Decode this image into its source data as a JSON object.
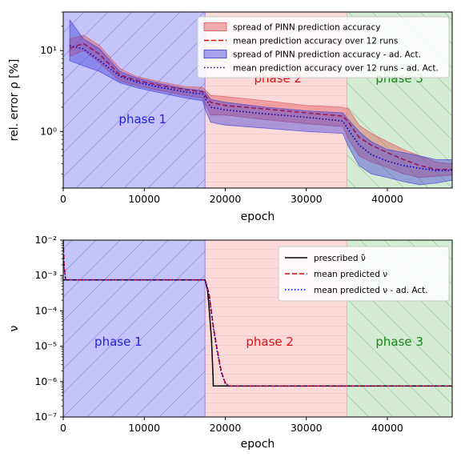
{
  "chart_data": [
    {
      "type": "line",
      "xlabel": "epoch",
      "ylabel": "rel. error ρ [%]",
      "xlim": [
        0,
        48000
      ],
      "ylim": [
        0.2,
        30
      ],
      "yscale": "log",
      "xticks": [
        0,
        10000,
        20000,
        30000,
        40000
      ],
      "xtick_labels": [
        "0",
        "10000",
        "20000",
        "30000",
        "40000"
      ],
      "yticks": [
        1,
        10
      ],
      "ytick_labels": [
        "10⁰",
        "10¹"
      ],
      "legend_position": "top-right",
      "phases": [
        {
          "label": "phase 1",
          "start": 0,
          "end": 17500,
          "color": "#4d4df0",
          "text_color": "#2222dd",
          "label_x": 9800,
          "label_y": 1.4
        },
        {
          "label": "phase 2",
          "start": 17500,
          "end": 35000,
          "color": "#f59090",
          "text_color": "#e01010",
          "label_x": 26500,
          "label_y": 4.5
        },
        {
          "label": "phase 3",
          "start": 35000,
          "end": 48000,
          "color": "#7dc47d",
          "text_color": "#118811",
          "label_x": 41500,
          "label_y": 4.5
        }
      ],
      "series": [
        {
          "name": "spread of PINN prediction accuracy",
          "kind": "band",
          "color": "#e05050",
          "x": [
            800,
            2500,
            4500,
            7000,
            9000,
            12000,
            15000,
            17200,
            17500,
            18200,
            20000,
            25000,
            30000,
            34500,
            35200,
            36500,
            38000,
            40000,
            42000,
            44000,
            46000,
            48000
          ],
          "lower": [
            8.5,
            10.0,
            7.0,
            4.2,
            3.7,
            3.2,
            2.8,
            2.6,
            2.2,
            1.6,
            1.6,
            1.4,
            1.25,
            1.15,
            0.8,
            0.5,
            0.42,
            0.36,
            0.3,
            0.27,
            0.28,
            0.29
          ],
          "upper": [
            14.0,
            15.5,
            11.5,
            6.0,
            4.8,
            4.1,
            3.6,
            3.5,
            3.3,
            2.8,
            2.7,
            2.4,
            2.1,
            2.0,
            1.9,
            1.2,
            0.95,
            0.75,
            0.6,
            0.5,
            0.42,
            0.4
          ]
        },
        {
          "name": "mean prediction accuracy over 12 runs",
          "kind": "line",
          "style": "dashed",
          "color": "#e00000",
          "x": [
            800,
            2500,
            4500,
            7000,
            9000,
            12000,
            15000,
            17200,
            17500,
            18200,
            20000,
            25000,
            30000,
            34500,
            35200,
            36500,
            38000,
            40000,
            42000,
            44000,
            46000,
            48000
          ],
          "y": [
            10.7,
            12.2,
            9.0,
            5.0,
            4.3,
            3.7,
            3.3,
            3.1,
            2.8,
            2.3,
            2.1,
            1.9,
            1.7,
            1.55,
            1.3,
            0.85,
            0.68,
            0.55,
            0.45,
            0.38,
            0.34,
            0.34
          ]
        },
        {
          "name": "spread of PINN prediction accuracy - ad. Act.",
          "kind": "band",
          "color": "#3a3ad8",
          "x": [
            800,
            2500,
            4500,
            7000,
            9000,
            12000,
            15000,
            17200,
            17500,
            18200,
            20000,
            25000,
            30000,
            34500,
            35200,
            36500,
            38000,
            40000,
            42000,
            44000,
            46000,
            48000
          ],
          "lower": [
            7.5,
            6.5,
            5.5,
            4.0,
            3.5,
            3.0,
            2.6,
            2.4,
            1.9,
            1.3,
            1.2,
            1.1,
            1.0,
            0.95,
            0.65,
            0.38,
            0.3,
            0.27,
            0.24,
            0.22,
            0.23,
            0.25
          ],
          "upper": [
            24.0,
            14.0,
            10.5,
            5.5,
            4.6,
            3.9,
            3.4,
            3.2,
            3.1,
            2.5,
            2.3,
            2.0,
            1.8,
            1.7,
            1.4,
            1.0,
            0.75,
            0.6,
            0.55,
            0.5,
            0.45,
            0.45
          ]
        },
        {
          "name": "mean prediction accuracy over 12 runs - ad. Act.",
          "kind": "line",
          "style": "dotted",
          "color": "#0000cc",
          "x": [
            800,
            2500,
            4500,
            7000,
            9000,
            12000,
            15000,
            17200,
            17500,
            18200,
            20000,
            25000,
            30000,
            34500,
            35200,
            36500,
            38000,
            40000,
            42000,
            44000,
            46000,
            48000
          ],
          "y": [
            11.5,
            10.5,
            7.5,
            4.8,
            4.1,
            3.5,
            3.1,
            2.9,
            2.6,
            2.0,
            1.85,
            1.65,
            1.5,
            1.35,
            1.05,
            0.68,
            0.52,
            0.43,
            0.38,
            0.35,
            0.33,
            0.33
          ]
        }
      ]
    },
    {
      "type": "line",
      "xlabel": "epoch",
      "ylabel": "ν",
      "xlim": [
        0,
        48000
      ],
      "ylim": [
        1e-07,
        0.01
      ],
      "yscale": "log",
      "xticks": [
        0,
        10000,
        20000,
        30000,
        40000
      ],
      "xtick_labels": [
        "0",
        "10000",
        "20000",
        "30000",
        "40000"
      ],
      "yticks": [
        1e-07,
        1e-06,
        1e-05,
        0.0001,
        0.001,
        0.01
      ],
      "ytick_labels": [
        "10⁻⁷",
        "10⁻⁶",
        "10⁻⁵",
        "10⁻⁴",
        "10⁻³",
        "10⁻²"
      ],
      "legend_position": "top-right",
      "phases": [
        {
          "label": "phase 1",
          "start": 0,
          "end": 17500,
          "color": "#4d4df0",
          "text_color": "#2222dd",
          "label_x": 6800,
          "label_y": 1.3e-05
        },
        {
          "label": "phase 2",
          "start": 17500,
          "end": 35000,
          "color": "#f59090",
          "text_color": "#e01010",
          "label_x": 25500,
          "label_y": 1.3e-05
        },
        {
          "label": "phase 3",
          "start": 35000,
          "end": 48000,
          "color": "#7dc47d",
          "text_color": "#118811",
          "label_x": 41500,
          "label_y": 1.3e-05
        }
      ],
      "series": [
        {
          "name": "prescribed ν̃",
          "kind": "line",
          "style": "solid",
          "color": "#000000",
          "x": [
            0,
            17500,
            17800,
            18000,
            18300,
            18500,
            18520,
            48000
          ],
          "y": [
            0.00075,
            0.00075,
            0.0004,
            0.00012,
            1.5e-05,
            1.2e-06,
            7.5e-07,
            7.5e-07
          ]
        },
        {
          "name": "mean predicted ν",
          "kind": "line",
          "style": "dashed",
          "color": "#e00000",
          "x": [
            0,
            100,
            300,
            17500,
            18000,
            18500,
            19000,
            19500,
            20000,
            20500,
            48000
          ],
          "y": [
            0.01,
            0.002,
            0.00075,
            0.00075,
            0.0003,
            4e-05,
            8e-06,
            2e-06,
            9e-07,
            7.5e-07,
            7.5e-07
          ]
        },
        {
          "name": "mean predicted ν - ad. Act.",
          "kind": "line",
          "style": "dotted",
          "color": "#0000cc",
          "x": [
            0,
            100,
            300,
            17500,
            18000,
            18500,
            19000,
            19500,
            20000,
            20500,
            48000
          ],
          "y": [
            0.009,
            0.0018,
            0.00075,
            0.00075,
            0.00028,
            3.5e-05,
            7e-06,
            1.8e-06,
            9e-07,
            7.5e-07,
            7.5e-07
          ]
        }
      ]
    }
  ]
}
